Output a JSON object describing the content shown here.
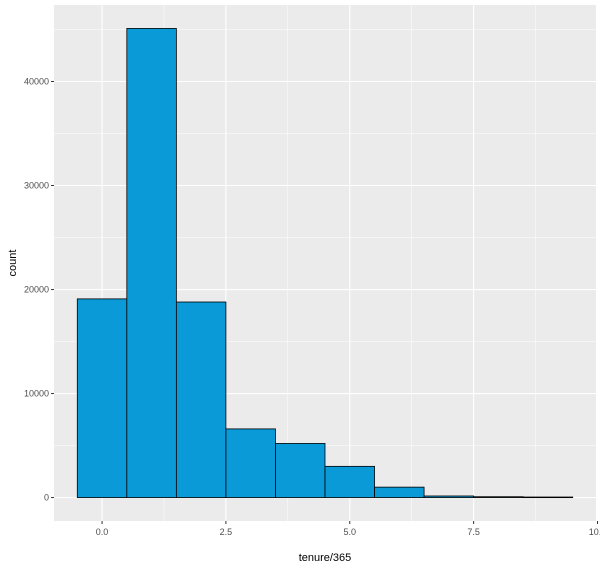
{
  "chart_data": {
    "type": "bar",
    "title": "",
    "xlabel": "tenure/365",
    "ylabel": "count",
    "bin_width": 1,
    "bins": [
      {
        "center": 0,
        "count": 19100
      },
      {
        "center": 1,
        "count": 45100
      },
      {
        "center": 2,
        "count": 18800
      },
      {
        "center": 3,
        "count": 6600
      },
      {
        "center": 4,
        "count": 5200
      },
      {
        "center": 5,
        "count": 3000
      },
      {
        "center": 6,
        "count": 1000
      },
      {
        "center": 7,
        "count": 150
      },
      {
        "center": 8,
        "count": 80
      },
      {
        "center": 9,
        "count": 50
      }
    ],
    "xlim": [
      -0.97,
      9.97
    ],
    "ylim": [
      -2255,
      47355
    ],
    "x_ticks": [
      0,
      2.5,
      5,
      7.5,
      10
    ],
    "x_tick_labels": [
      "0.0",
      "2.5",
      "5.0",
      "7.5",
      "10.0"
    ],
    "y_ticks": [
      0,
      10000,
      20000,
      30000,
      40000
    ],
    "y_tick_labels": [
      "0",
      "10000",
      "20000",
      "30000",
      "40000"
    ],
    "grid": true,
    "legend": "none",
    "bar_fill": "#0a9ad7",
    "bar_outline": "#000000",
    "panel_background": "#ebebeb",
    "grid_color": "#ffffff"
  }
}
